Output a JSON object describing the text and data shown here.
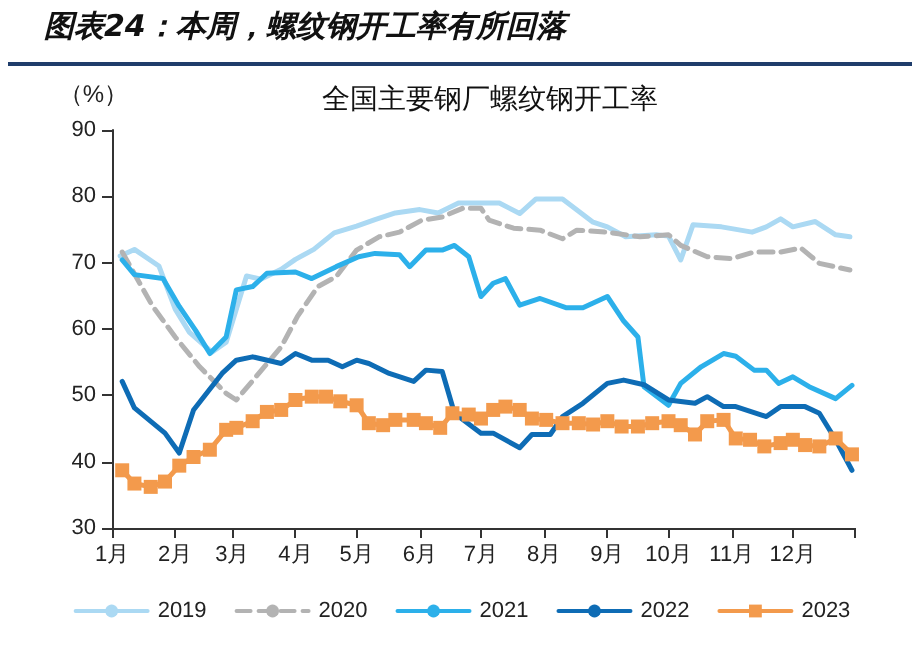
{
  "chart_data": {
    "type": "line",
    "title": "图表24：本周，螺纹钢开工率有所回落",
    "subtitle": "全国主要钢厂螺纹钢开工率",
    "ylabel": "（%）",
    "xlim": [
      "--01-01",
      "--12-31"
    ],
    "xticks": [
      {
        "value": "--01-01",
        "label": "1月"
      },
      {
        "value": "--02-01",
        "label": "2月"
      },
      {
        "value": "--03-01",
        "label": "3月"
      },
      {
        "value": "--04-01",
        "label": "4月"
      },
      {
        "value": "--05-01",
        "label": "5月"
      },
      {
        "value": "--06-01",
        "label": "6月"
      },
      {
        "value": "--07-01",
        "label": "7月"
      },
      {
        "value": "--08-01",
        "label": "8月"
      },
      {
        "value": "--09-01",
        "label": "9月"
      },
      {
        "value": "--10-01",
        "label": "10月"
      },
      {
        "value": "--11-01",
        "label": "11月"
      },
      {
        "value": "--12-01",
        "label": "12月"
      },
      {
        "value": "--12-31",
        "label": null
      }
    ],
    "ylim": [
      30,
      90
    ],
    "yticks": [
      30,
      40,
      50,
      60,
      70,
      80,
      90
    ],
    "grid": false,
    "legend": "bottom",
    "marker": "none",
    "line_style": "solid",
    "series": [
      {
        "name": "2019",
        "color": "#abd9f3",
        "x": [
          "--01-05",
          "--01-12",
          "--01-24",
          "--02-01",
          "--02-08",
          "--02-19",
          "--02-26",
          "--03-02",
          "--03-08",
          "--03-15",
          "--03-25",
          "--04-01",
          "--04-10",
          "--04-20",
          "--05-01",
          "--05-10",
          "--05-20",
          "--06-01",
          "--06-10",
          "--06-20",
          "--07-01",
          "--07-10",
          "--07-20",
          "--07-28",
          "--08-10",
          "--08-25",
          "--09-01",
          "--09-10",
          "--09-25",
          "--10-01",
          "--10-07",
          "--10-13",
          "--10-27",
          "--11-11",
          "--11-18",
          "--11-25",
          "--12-01",
          "--12-12",
          "--12-22",
          "--12-29"
        ],
        "values": [
          71,
          72,
          69.5,
          63,
          59.5,
          56.5,
          58,
          62,
          68,
          67.5,
          69,
          70.5,
          72,
          74.5,
          75.5,
          76.5,
          77.5,
          78,
          77.5,
          79,
          79,
          79,
          77.4,
          79.6,
          79.6,
          76.1,
          75.4,
          73.9,
          74.2,
          74,
          70.4,
          75.7,
          75.4,
          74.6,
          75.4,
          76.6,
          75.4,
          76.2,
          74.2,
          73.9
        ]
      },
      {
        "name": "2020",
        "color": "#b3b3b3",
        "line_style": "dashed",
        "x": [
          "--01-06",
          "--01-21",
          "--02-01",
          "--02-13",
          "--02-26",
          "--03-03",
          "--03-14",
          "--03-25",
          "--04-02",
          "--04-12",
          "--04-21",
          "--05-01",
          "--05-12",
          "--05-22",
          "--06-02",
          "--06-12",
          "--06-22",
          "--07-01",
          "--07-05",
          "--07-17",
          "--07-30",
          "--08-10",
          "--08-17",
          "--09-01",
          "--09-17",
          "--10-01",
          "--10-07",
          "--10-20",
          "--11-01",
          "--11-12",
          "--11-25",
          "--12-05",
          "--12-14",
          "--12-29"
        ],
        "values": [
          71.6,
          63.4,
          58.8,
          54.3,
          50.3,
          49.3,
          53.3,
          57.3,
          61.9,
          66.4,
          67.9,
          71.9,
          73.9,
          74.6,
          76.4,
          76.9,
          78.2,
          78.2,
          76.4,
          75.2,
          74.9,
          73.6,
          74.9,
          74.6,
          73.9,
          74.2,
          72.6,
          70.9,
          70.6,
          71.6,
          71.6,
          72.2,
          69.9,
          68.9
        ]
      },
      {
        "name": "2021",
        "color": "#2cb0ea",
        "x": [
          "--01-06",
          "--01-12",
          "--01-26",
          "--02-03",
          "--02-11",
          "--02-18",
          "--02-26",
          "--03-03",
          "--03-11",
          "--03-18",
          "--04-01",
          "--04-09",
          "--04-21",
          "--05-02",
          "--05-10",
          "--05-22",
          "--05-27",
          "--06-04",
          "--06-12",
          "--06-18",
          "--06-25",
          "--07-01",
          "--07-07",
          "--07-13",
          "--07-20",
          "--07-30",
          "--08-12",
          "--08-20",
          "--09-01",
          "--09-09",
          "--09-16",
          "--09-19",
          "--10-01",
          "--10-07",
          "--10-17",
          "--10-28",
          "--11-03",
          "--11-12",
          "--11-18",
          "--11-24",
          "--12-01",
          "--12-09",
          "--12-22",
          "--12-30"
        ],
        "values": [
          70.4,
          68.2,
          67.6,
          63.4,
          59.8,
          56.3,
          58.8,
          65.9,
          66.4,
          68.4,
          68.6,
          67.6,
          69.4,
          70.9,
          71.4,
          71.2,
          69.4,
          71.9,
          71.9,
          72.6,
          70.9,
          64.9,
          66.9,
          67.6,
          63.6,
          64.6,
          63.2,
          63.2,
          64.9,
          61.2,
          58.8,
          51.3,
          48.5,
          51.8,
          54.3,
          56.3,
          55.9,
          53.8,
          53.8,
          51.8,
          52.8,
          51.3,
          49.5,
          51.5
        ]
      },
      {
        "name": "2022",
        "color": "#0e6cb5",
        "x": [
          "--01-06",
          "--01-12",
          "--01-27",
          "--02-03",
          "--02-10",
          "--02-24",
          "--03-03",
          "--03-11",
          "--03-25",
          "--04-01",
          "--04-09",
          "--04-17",
          "--04-24",
          "--05-01",
          "--05-07",
          "--05-17",
          "--05-29",
          "--06-04",
          "--06-12",
          "--06-18",
          "--07-01",
          "--07-07",
          "--07-20",
          "--07-26",
          "--08-04",
          "--08-10",
          "--08-20",
          "--09-01",
          "--09-09",
          "--09-19",
          "--10-01",
          "--10-14",
          "--10-20",
          "--10-28",
          "--11-03",
          "--11-18",
          "--11-25",
          "--12-07",
          "--12-14",
          "--12-22",
          "--12-30"
        ],
        "values": [
          52.1,
          48.1,
          44.3,
          41.3,
          47.8,
          53.3,
          55.3,
          55.8,
          54.8,
          56.3,
          55.3,
          55.3,
          54.3,
          55.3,
          54.8,
          53.3,
          52.1,
          53.8,
          53.6,
          47.3,
          44.3,
          44.3,
          42.1,
          44.1,
          44.1,
          46.8,
          48.8,
          51.8,
          52.3,
          51.6,
          49.3,
          48.8,
          49.8,
          48.3,
          48.3,
          46.8,
          48.3,
          48.3,
          47.3,
          43.3,
          38.7
        ]
      },
      {
        "name": "2023",
        "color": "#f39a4c",
        "marker": "square",
        "x": [
          "--01-06",
          "--01-12",
          "--01-20",
          "--01-27",
          "--02-03",
          "--02-10",
          "--02-18",
          "--02-26",
          "--03-03",
          "--03-11",
          "--03-18",
          "--03-25",
          "--04-01",
          "--04-09",
          "--04-16",
          "--04-23",
          "--05-01",
          "--05-07",
          "--05-14",
          "--05-20",
          "--05-29",
          "--06-04",
          "--06-11",
          "--06-17",
          "--06-25",
          "--07-01",
          "--07-07",
          "--07-13",
          "--07-20",
          "--07-26",
          "--08-02",
          "--08-10",
          "--08-18",
          "--08-25",
          "--09-01",
          "--09-08",
          "--09-16",
          "--09-23",
          "--10-01",
          "--10-07",
          "--10-14",
          "--10-20",
          "--10-28",
          "--11-03",
          "--11-10",
          "--11-17",
          "--11-25",
          "--12-01",
          "--12-07",
          "--12-14",
          "--12-22",
          "--12-30"
        ],
        "values": [
          38.7,
          36.7,
          36.2,
          37,
          39.4,
          40.7,
          41.8,
          44.8,
          45.1,
          46.1,
          47.5,
          47.8,
          49.3,
          49.8,
          49.8,
          49.1,
          48.5,
          45.8,
          45.5,
          46.3,
          46.3,
          45.8,
          45.1,
          47.3,
          47.1,
          46.5,
          47.8,
          48.3,
          47.8,
          46.5,
          46.3,
          45.8,
          45.8,
          45.6,
          46.1,
          45.3,
          45.3,
          45.8,
          46.1,
          45.5,
          44.1,
          46.1,
          46.3,
          43.5,
          43.3,
          42.3,
          42.8,
          43.3,
          42.5,
          42.3,
          43.5,
          41.1
        ]
      }
    ]
  }
}
